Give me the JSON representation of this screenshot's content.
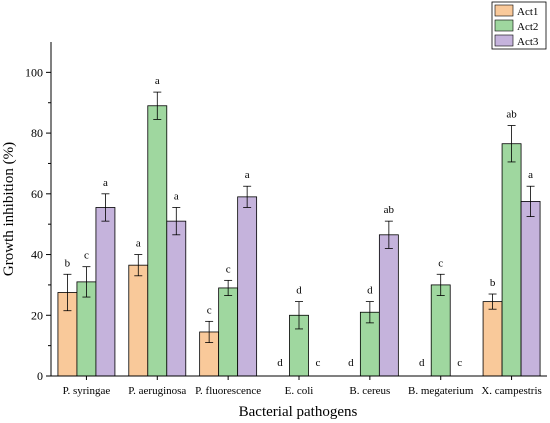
{
  "chart_data": {
    "type": "bar",
    "xlabel": "Bacterial pathogens",
    "ylabel": "Growth inhibition (%)",
    "ylim": [
      0,
      110
    ],
    "yticks": [
      0,
      20,
      40,
      60,
      80,
      100
    ],
    "grid": false,
    "legend_position": "top-right",
    "categories": [
      "P. syringae",
      "P. aeruginosa",
      "P. fluorescence",
      "E. coli",
      "B. cereus",
      "B. megaterium",
      "X. campestris"
    ],
    "series": [
      {
        "name": "Act1",
        "color": "#f9c99a",
        "values": [
          27.5,
          36.5,
          14.5,
          0,
          0,
          0,
          24.5
        ],
        "errors": [
          6.0,
          3.5,
          3.5,
          0,
          0,
          0,
          2.5
        ],
        "letters": [
          "b",
          "a",
          "c",
          "d",
          "d",
          "d",
          "b"
        ]
      },
      {
        "name": "Act2",
        "color": "#9fd79f",
        "values": [
          31.0,
          89.0,
          29.0,
          20.0,
          21.0,
          30.0,
          76.5
        ],
        "errors": [
          5.0,
          4.5,
          2.5,
          4.5,
          3.5,
          3.5,
          6.0
        ],
        "letters": [
          "c",
          "a",
          "c",
          "d",
          "d",
          "c",
          "ab"
        ]
      },
      {
        "name": "Act3",
        "color": "#c5b3dc",
        "values": [
          55.5,
          51.0,
          59.0,
          0,
          46.5,
          0,
          57.5
        ],
        "errors": [
          4.5,
          4.5,
          3.5,
          0,
          4.5,
          0,
          5.0
        ],
        "letters": [
          "a",
          "a",
          "a",
          "c",
          "ab",
          "c",
          "a"
        ]
      }
    ]
  }
}
